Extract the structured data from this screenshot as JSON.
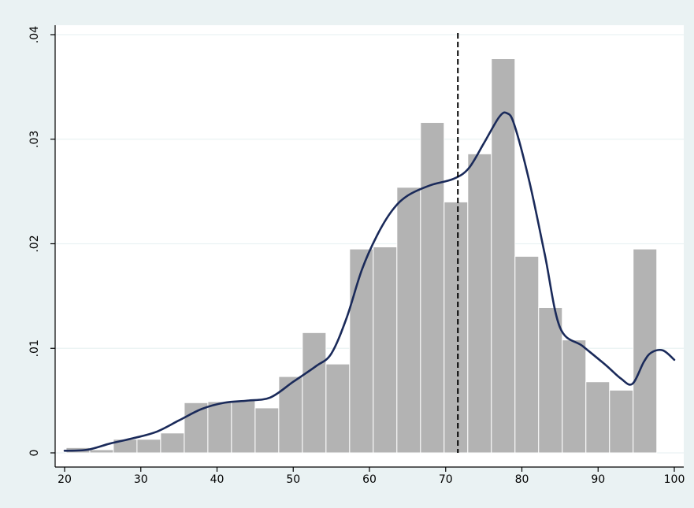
{
  "chart_data": {
    "type": "bar",
    "bar_edges": [
      20.2,
      23.3,
      26.4,
      29.5,
      32.6,
      35.7,
      38.8,
      41.9,
      45.0,
      48.1,
      51.2,
      54.3,
      57.4,
      60.5,
      63.6,
      66.7,
      69.8,
      72.9,
      76.0,
      79.1,
      82.2,
      85.3,
      88.4,
      91.5,
      94.6,
      97.7,
      100.8
    ],
    "values": [
      0.0005,
      0.0003,
      0.0013,
      0.0013,
      0.0019,
      0.0048,
      0.0049,
      0.005,
      0.0043,
      0.0073,
      0.0115,
      0.0085,
      0.0195,
      0.0197,
      0.0254,
      0.0316,
      0.024,
      0.0286,
      0.0377,
      0.0188,
      0.0139,
      0.0108,
      0.0068,
      0.006,
      0.0195
    ],
    "density_curve": {
      "x": [
        20,
        23,
        26,
        29,
        32,
        35,
        38,
        41,
        44,
        47,
        50,
        53,
        55,
        57,
        59,
        61,
        63,
        65,
        68,
        71,
        73,
        75,
        77,
        78,
        79,
        81,
        83,
        85,
        88,
        91,
        93,
        94.5,
        96,
        97,
        98.5,
        100
      ],
      "y": [
        0.0002,
        0.0003,
        0.0009,
        0.0014,
        0.002,
        0.0031,
        0.0042,
        0.0048,
        0.005,
        0.0053,
        0.0068,
        0.0083,
        0.0095,
        0.0129,
        0.0175,
        0.0208,
        0.0232,
        0.0246,
        0.0256,
        0.0262,
        0.0272,
        0.0296,
        0.0321,
        0.0325,
        0.0314,
        0.0259,
        0.019,
        0.012,
        0.0102,
        0.0084,
        0.0071,
        0.0066,
        0.0087,
        0.0096,
        0.0098,
        0.0089
      ]
    },
    "reference_line_x": 71.6,
    "xlim": [
      20,
      100
    ],
    "ylim": [
      0,
      0.04
    ],
    "x_ticks": [
      20,
      30,
      40,
      50,
      60,
      70,
      80,
      90,
      100
    ],
    "x_tick_labels": [
      "20",
      "30",
      "40",
      "50",
      "60",
      "70",
      "80",
      "90",
      "100"
    ],
    "y_ticks": [
      0,
      0.01,
      0.02,
      0.03,
      0.04
    ],
    "y_tick_labels": [
      "0",
      ".01",
      ".02",
      ".03",
      ".04"
    ],
    "grid": "horizontal",
    "colors": {
      "background": "#eaf2f3",
      "plot_background": "#ffffff",
      "bar_fill": "#b3b3b3",
      "curve": "#1a2a5a",
      "reference_line": "#000000",
      "gridline": "#eaf2f3"
    }
  }
}
